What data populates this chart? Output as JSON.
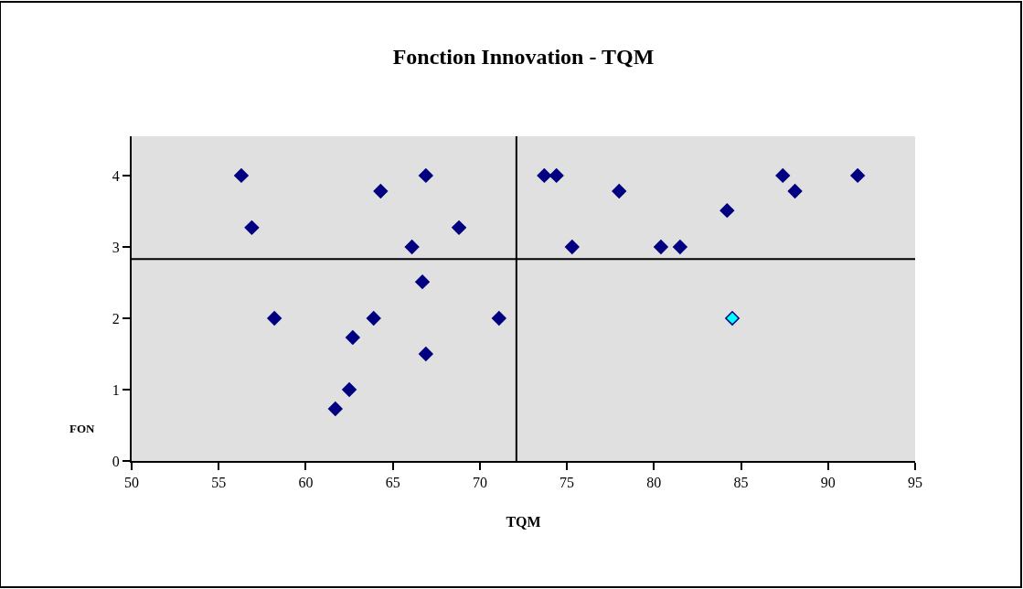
{
  "chart_data": {
    "type": "scatter",
    "title": "Fonction Innovation - TQM",
    "xlabel": "TQM",
    "ylabel": "FON",
    "xlim": [
      50,
      95
    ],
    "xticks": [
      50,
      55,
      60,
      65,
      70,
      75,
      80,
      85,
      90,
      95
    ],
    "ylim": [
      0,
      4.55
    ],
    "yticks": [
      0,
      1,
      2,
      3,
      4
    ],
    "marker": "diamond",
    "grid": false,
    "series": [
      {
        "color": "#000080",
        "x": [
          56.3,
          56.9,
          58.2,
          61.7,
          62.5,
          62.7,
          63.9,
          64.3,
          66.1,
          66.9,
          66.7,
          66.9,
          68.8,
          71.1,
          73.7,
          74.4,
          75.3,
          78.0,
          80.4,
          81.5,
          84.2,
          87.4,
          88.1,
          91.7
        ],
        "values": [
          4,
          3.27,
          2,
          0.73,
          1,
          1.73,
          2,
          3.78,
          3,
          4,
          2.51,
          1.5,
          3.27,
          2,
          4,
          4,
          3,
          3.78,
          3,
          3,
          3.51,
          4,
          3.78,
          4
        ]
      },
      {
        "color": "#00ffff",
        "x": [
          84.5
        ],
        "values": [
          2
        ]
      }
    ],
    "ref_lines": [
      {
        "axis": "x",
        "value": 72.1,
        "color": "#000000"
      },
      {
        "axis": "y",
        "value": 2.83,
        "color": "#000000"
      }
    ]
  }
}
